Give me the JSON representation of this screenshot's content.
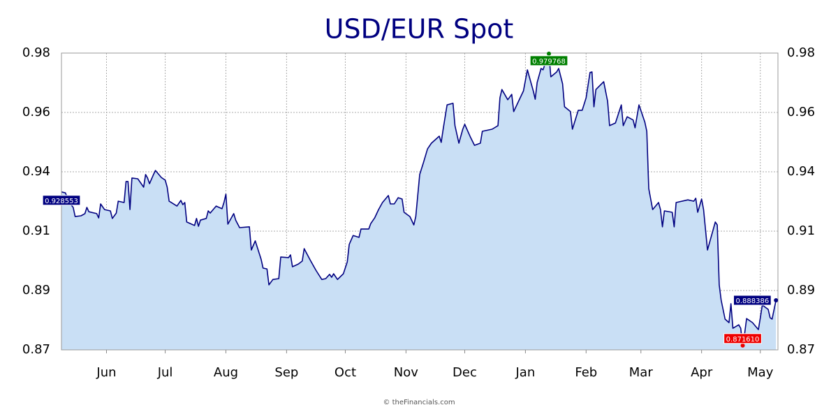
{
  "chart_data": {
    "type": "area",
    "title": "USD/EUR Spot",
    "source": "© theFinancials.com",
    "color": "#000080",
    "fill_color": "#c9dff5",
    "value_label_color": "#000080",
    "max_label_color": "#008000",
    "min_label_color": "#ee0000",
    "grid": true,
    "xlim": [
      -23,
      343
    ],
    "ylim": [
      0.87,
      0.98
    ],
    "xticks": [
      {
        "value": 0,
        "label": "Jun"
      },
      {
        "value": 30,
        "label": "Jul"
      },
      {
        "value": 61,
        "label": "Aug"
      },
      {
        "value": 92,
        "label": "Sep"
      },
      {
        "value": 122,
        "label": "Oct"
      },
      {
        "value": 153,
        "label": "Nov"
      },
      {
        "value": 183,
        "label": "Dec"
      },
      {
        "value": 214,
        "label": "Jan"
      },
      {
        "value": 245,
        "label": "Feb"
      },
      {
        "value": 273,
        "label": "Mar"
      },
      {
        "value": 304,
        "label": "Apr"
      },
      {
        "value": 334,
        "label": "May"
      }
    ],
    "yticks": [
      0.87,
      {
        "value": 0.892,
        "label": "0.89"
      },
      {
        "value": 0.914,
        "label": "0.91"
      },
      {
        "value": 0.936,
        "label": "0.94"
      },
      {
        "value": 0.958,
        "label": "0.96"
      },
      0.98
    ],
    "x": [
      -23,
      -21,
      -19,
      -17,
      -16,
      -13,
      -11,
      -10,
      -9,
      -5,
      -4,
      -3,
      -1,
      2,
      3,
      5,
      6,
      9,
      10,
      11,
      12,
      13,
      16,
      19,
      20,
      21,
      22,
      24,
      25,
      28,
      30,
      31,
      32,
      36,
      38,
      39,
      40,
      41,
      45,
      46,
      47,
      48,
      51,
      52,
      53,
      56,
      59,
      60,
      61,
      62,
      65,
      66,
      68,
      73,
      74,
      76,
      79,
      80,
      82,
      83,
      85,
      88,
      89,
      93,
      94,
      95,
      98,
      100,
      101,
      104,
      107,
      110,
      112,
      114,
      115,
      116,
      118,
      121,
      123,
      124,
      126,
      129,
      130,
      134,
      135,
      137,
      139,
      141,
      144,
      145,
      147,
      149,
      151,
      152,
      155,
      157,
      158,
      160,
      162,
      164,
      166,
      170,
      171,
      172,
      174,
      177,
      178,
      180,
      182,
      183,
      186,
      188,
      191,
      192,
      197,
      200,
      201,
      202,
      205,
      207,
      208,
      210,
      213,
      215,
      218,
      219,
      220,
      222,
      223,
      225,
      226,
      227,
      230,
      231,
      233,
      234,
      237,
      238,
      241,
      243,
      245,
      247,
      248,
      249,
      250,
      254,
      256,
      257,
      260,
      263,
      264,
      266,
      269,
      270,
      272,
      275,
      276,
      277,
      279,
      282,
      283,
      284,
      285,
      289,
      290,
      291,
      297,
      300,
      301,
      302,
      304,
      305,
      307,
      311,
      312,
      313,
      314,
      316,
      318,
      319,
      320,
      323,
      324,
      325,
      326,
      327,
      330,
      333,
      334,
      335,
      338,
      339,
      340,
      342
    ],
    "values": [
      0.928553,
      0.9282,
      0.9246,
      0.9228,
      0.9194,
      0.9197,
      0.9205,
      0.9228,
      0.9212,
      0.9205,
      0.9189,
      0.9241,
      0.922,
      0.9215,
      0.9187,
      0.9207,
      0.9251,
      0.9246,
      0.9324,
      0.9324,
      0.922,
      0.9337,
      0.9334,
      0.9303,
      0.935,
      0.9337,
      0.9316,
      0.935,
      0.9365,
      0.9339,
      0.9329,
      0.9303,
      0.9251,
      0.9233,
      0.9254,
      0.9238,
      0.9246,
      0.9174,
      0.9161,
      0.9187,
      0.9158,
      0.9181,
      0.9187,
      0.9215,
      0.9207,
      0.9233,
      0.9223,
      0.9246,
      0.9277,
      0.9166,
      0.9205,
      0.9181,
      0.9153,
      0.9156,
      0.907,
      0.9104,
      0.9036,
      0.9003,
      0.9,
      0.8941,
      0.8961,
      0.8964,
      0.9044,
      0.9042,
      0.9052,
      0.9008,
      0.9018,
      0.9029,
      0.9075,
      0.9034,
      0.8995,
      0.8961,
      0.8964,
      0.898,
      0.8969,
      0.8982,
      0.8961,
      0.8982,
      0.9026,
      0.9091,
      0.9124,
      0.9117,
      0.9148,
      0.9148,
      0.9168,
      0.9189,
      0.922,
      0.9246,
      0.9272,
      0.9241,
      0.9241,
      0.9264,
      0.9259,
      0.921,
      0.9194,
      0.9163,
      0.9194,
      0.935,
      0.9396,
      0.9445,
      0.9466,
      0.9492,
      0.9469,
      0.9518,
      0.9608,
      0.9614,
      0.9531,
      0.9466,
      0.9518,
      0.9536,
      0.9487,
      0.9458,
      0.9466,
      0.951,
      0.9518,
      0.9531,
      0.9634,
      0.9665,
      0.9627,
      0.9647,
      0.9583,
      0.9614,
      0.966,
      0.9738,
      0.966,
      0.9629,
      0.9691,
      0.9743,
      0.9738,
      0.9779,
      0.979768,
      0.9712,
      0.973,
      0.9743,
      0.9686,
      0.9601,
      0.9583,
      0.9518,
      0.9588,
      0.9588,
      0.9634,
      0.9728,
      0.973,
      0.9601,
      0.9665,
      0.9694,
      0.9621,
      0.9531,
      0.9541,
      0.9608,
      0.9531,
      0.9564,
      0.9552,
      0.9523,
      0.9608,
      0.9544,
      0.951,
      0.9298,
      0.922,
      0.9246,
      0.922,
      0.9156,
      0.9215,
      0.921,
      0.9156,
      0.9246,
      0.9256,
      0.9251,
      0.9262,
      0.921,
      0.9259,
      0.922,
      0.907,
      0.9174,
      0.9163,
      0.8941,
      0.8884,
      0.8814,
      0.8801,
      0.8871,
      0.878,
      0.8793,
      0.878,
      0.87161,
      0.876,
      0.8816,
      0.8801,
      0.8775,
      0.8819,
      0.8866,
      0.885,
      0.8819,
      0.8814,
      0.888386
    ],
    "value_labels": [
      "0.928553",
      null,
      null,
      null,
      null,
      null,
      null,
      null,
      null,
      null,
      null,
      null,
      null,
      null,
      null,
      null,
      null,
      null,
      null,
      null,
      null,
      null,
      null,
      null,
      null,
      null,
      null,
      null,
      null,
      null,
      null,
      null,
      null,
      null,
      null,
      null,
      null,
      null,
      null,
      null,
      null,
      null,
      null,
      null,
      null,
      null,
      null,
      null,
      null,
      null,
      null,
      null,
      null,
      null,
      null,
      null,
      null,
      null,
      null,
      null,
      null,
      null,
      null,
      null,
      null,
      null,
      null,
      null,
      null,
      null,
      null,
      null,
      null,
      null,
      null,
      null,
      null,
      null,
      null,
      null,
      null,
      null,
      null,
      null,
      null,
      null,
      null,
      null,
      null,
      null,
      null,
      null,
      null,
      null,
      null,
      null,
      null,
      null,
      null,
      null,
      null,
      null,
      null,
      null,
      null,
      null,
      null,
      null,
      null,
      null,
      null,
      null,
      null,
      null,
      null,
      null,
      null,
      null,
      null,
      null,
      null,
      null,
      null,
      null,
      null,
      null,
      null,
      null,
      null,
      null,
      "0.979768",
      null,
      null,
      null,
      null,
      null,
      null,
      null,
      null,
      null,
      null,
      null,
      null,
      null,
      null,
      null,
      null,
      null,
      null,
      null,
      null,
      null,
      null,
      null,
      null,
      null,
      null,
      null,
      null,
      null,
      null,
      null,
      null,
      null,
      null,
      null,
      null,
      null,
      null,
      null,
      null,
      null,
      null,
      null,
      null,
      null,
      null,
      null,
      null,
      null,
      null,
      null,
      null,
      "0.871610",
      null,
      null,
      null,
      null,
      null,
      null,
      null,
      null,
      null,
      "0.888386"
    ]
  }
}
